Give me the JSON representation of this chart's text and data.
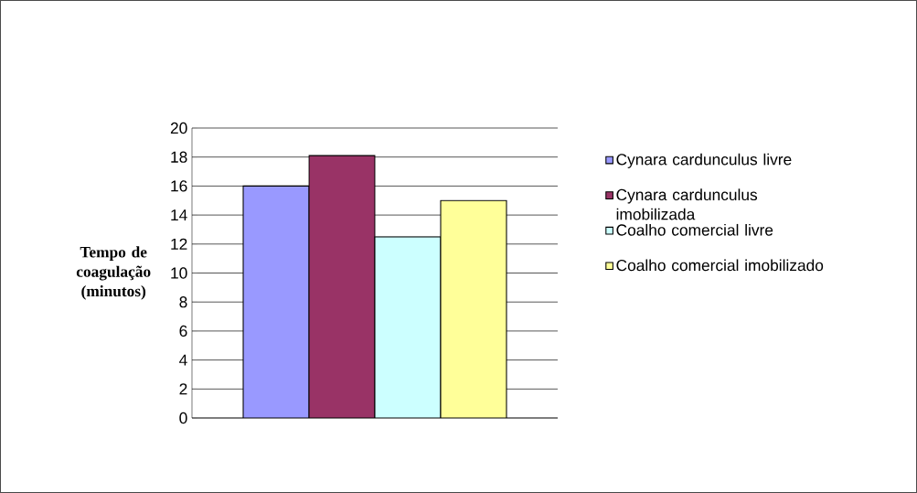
{
  "chart_data": {
    "type": "bar",
    "ylabel": "Tempo de coagulação (minutos)",
    "categories": [
      null
    ],
    "series": [
      {
        "name": "Cynara cardunculus livre",
        "color": "#9999ff",
        "values": [
          16
        ]
      },
      {
        "name": "Cynara cardunculus imobilizada",
        "color": "#993366",
        "values": [
          18.1
        ]
      },
      {
        "name": "Coalho comercial livre",
        "color": "#ccffff",
        "values": [
          12.5
        ]
      },
      {
        "name": "Coalho comercial imobilizado",
        "color": "#ffff99",
        "values": [
          15
        ]
      }
    ],
    "ylim": [
      0,
      20
    ],
    "yticks": [
      0,
      2,
      4,
      6,
      8,
      10,
      12,
      14,
      16,
      18,
      20
    ],
    "grid": "y",
    "legend": "right"
  }
}
